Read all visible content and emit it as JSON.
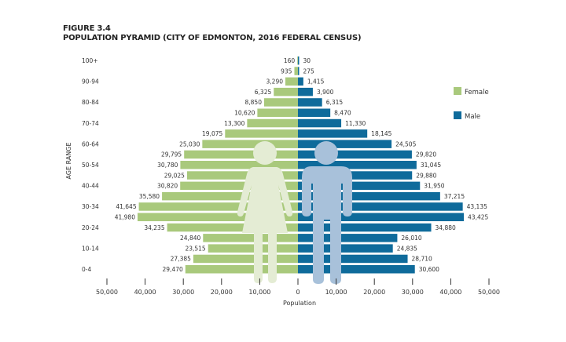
{
  "chart_data": {
    "type": "bar",
    "orientation": "horizontal-pyramid",
    "figure_label": "FIGURE 3.4",
    "title": "POPULATION PYRAMID (CITY OF EDMONTON, 2016 FEDERAL CENSUS)",
    "xlabel": "Population",
    "ylabel": "AGE RANGE",
    "categories": [
      "100+",
      "",
      "90-94",
      "",
      "80-84",
      "",
      "70-74",
      "",
      "60-64",
      "",
      "50-54",
      "",
      "40-44",
      "",
      "30-34",
      "",
      "20-24",
      "",
      "10-14",
      "",
      "0-4"
    ],
    "series": [
      {
        "name": "Female",
        "color": "#a9c97c",
        "side": "left",
        "values": [
          160,
          935,
          3290,
          6325,
          8850,
          10620,
          13300,
          19075,
          25030,
          29795,
          30780,
          29025,
          30820,
          35580,
          41645,
          41980,
          34235,
          24840,
          23515,
          27385,
          29470
        ],
        "labels": [
          "160",
          "935",
          "3,290",
          "6,325",
          "8,850",
          "10,620",
          "13,300",
          "19,075",
          "25,030",
          "29,795",
          "30,780",
          "29,025",
          "30,820",
          "35,580",
          "41,645",
          "41,980",
          "34,235",
          "24,840",
          "23,515",
          "27,385",
          "29,470"
        ]
      },
      {
        "name": "Male",
        "color": "#0f6b9b",
        "side": "right",
        "values": [
          30,
          275,
          1415,
          3900,
          6315,
          8470,
          11330,
          18145,
          24505,
          29820,
          31045,
          29880,
          31950,
          37215,
          43135,
          43425,
          34880,
          26010,
          24835,
          28710,
          30600
        ],
        "labels": [
          "30",
          "275",
          "1,415",
          "3,900",
          "6,315",
          "8,470",
          "11,330",
          "18,145",
          "24,505",
          "29,820",
          "31,045",
          "29,880",
          "31,950",
          "37,215",
          "43,135",
          "43,425",
          "34,880",
          "26,010",
          "24,835",
          "28,710",
          "30,600"
        ]
      }
    ],
    "xlim": [
      -50000,
      50000
    ],
    "x_ticks_left": [
      "50,000",
      "40,000",
      "30,000",
      "20,000",
      "10,000",
      "0"
    ],
    "x_ticks_right": [
      "10,000",
      "20,000",
      "30,000",
      "40,000",
      "50,000"
    ],
    "grid": false,
    "legend_position": "right",
    "icon_colors": {
      "female_silhouette": "#e4ecd4",
      "male_silhouette": "#a8c1da"
    }
  }
}
